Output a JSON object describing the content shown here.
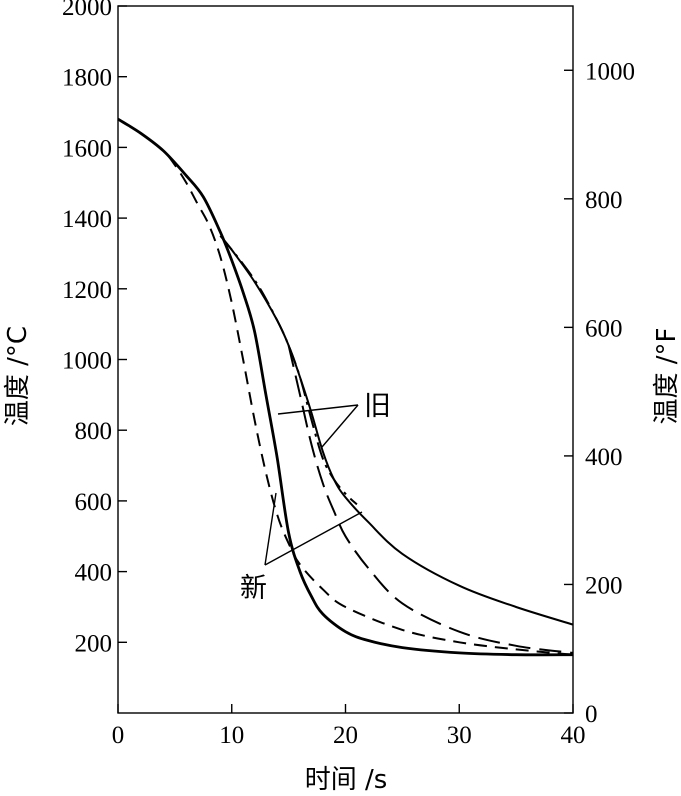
{
  "chart_data": {
    "type": "line",
    "xlabel": "时间 /s",
    "ylabel": "温度 /°C",
    "y2label": "温度 /°F",
    "xlim": [
      0,
      40
    ],
    "ylim": [
      0,
      2000
    ],
    "y2lim": [
      0,
      1100
    ],
    "x_ticks": [
      0,
      10,
      20,
      30,
      40
    ],
    "y_ticks": [
      200,
      400,
      600,
      800,
      1000,
      1200,
      1400,
      1600,
      1800,
      2000
    ],
    "y2_ticks": [
      0,
      200,
      400,
      600,
      800,
      1000
    ],
    "grid": false,
    "annotations": [
      "旧",
      "新"
    ],
    "series": [
      {
        "style": "solid-thick",
        "x": [
          0,
          2,
          4,
          6,
          7.5,
          9,
          10,
          11,
          12,
          13,
          14,
          15,
          16,
          17,
          18,
          20,
          22,
          25,
          30,
          35,
          40
        ],
        "y": [
          1680,
          1640,
          1590,
          1520,
          1460,
          1360,
          1280,
          1190,
          1080,
          900,
          720,
          510,
          400,
          330,
          280,
          230,
          205,
          185,
          170,
          165,
          165
        ]
      },
      {
        "style": "dashed",
        "x": [
          0,
          2,
          4,
          5,
          6,
          7,
          8,
          9,
          10,
          11,
          12,
          13,
          14,
          15,
          16,
          18,
          20,
          25,
          30,
          35,
          40
        ],
        "y": [
          1680,
          1640,
          1590,
          1550,
          1500,
          1440,
          1380,
          1290,
          1160,
          1000,
          830,
          680,
          560,
          480,
          420,
          350,
          300,
          235,
          200,
          180,
          165
        ]
      },
      {
        "style": "dash-dot",
        "x": [
          9,
          11,
          12.5,
          14,
          15,
          16,
          17,
          18,
          19,
          20,
          21
        ],
        "y": [
          1350,
          1270,
          1200,
          1110,
          1040,
          950,
          830,
          720,
          660,
          620,
          590
        ]
      },
      {
        "style": "solid-thin",
        "x": [
          9,
          10,
          12,
          14,
          15,
          16,
          17,
          18,
          19,
          20,
          22,
          25,
          30,
          35,
          40
        ],
        "y": [
          1350,
          1310,
          1220,
          1110,
          1040,
          950,
          850,
          740,
          660,
          610,
          540,
          450,
          360,
          300,
          250
        ]
      },
      {
        "style": "long-dash",
        "x": [
          15,
          16,
          17,
          18,
          19,
          20,
          22,
          25,
          30,
          35,
          40
        ],
        "y": [
          1040,
          900,
          760,
          650,
          570,
          500,
          410,
          310,
          230,
          190,
          170
        ]
      }
    ]
  }
}
